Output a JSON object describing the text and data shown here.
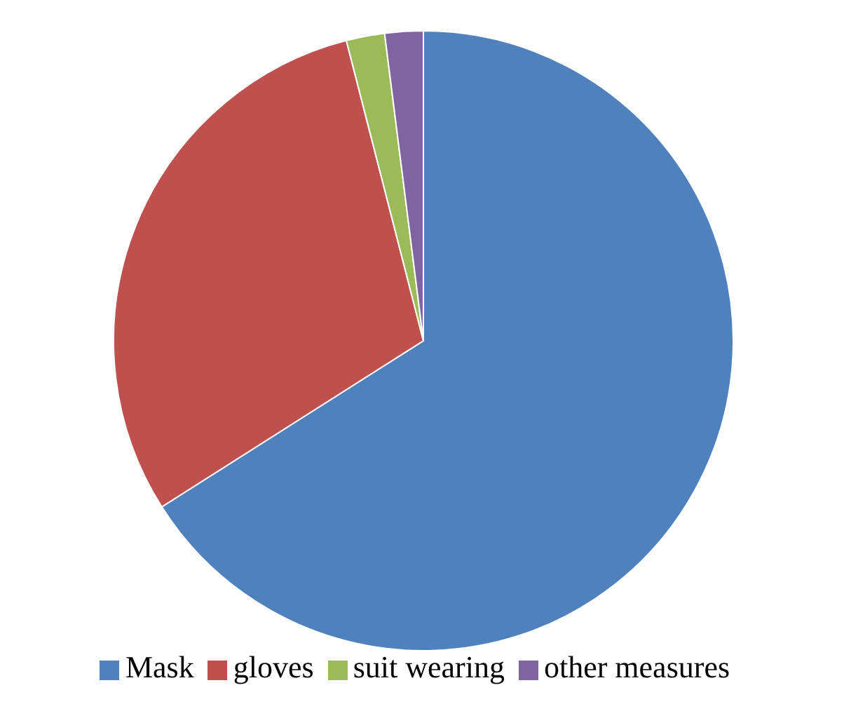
{
  "chart_data": {
    "type": "pie",
    "categories": [
      "Mask",
      "gloves",
      "suit wearing",
      "other measures"
    ],
    "values": [
      66,
      30,
      2,
      2
    ],
    "colors": [
      "#4f81bd",
      "#c0504d",
      "#9bbb59",
      "#8064a2"
    ],
    "legend": "bottom"
  }
}
